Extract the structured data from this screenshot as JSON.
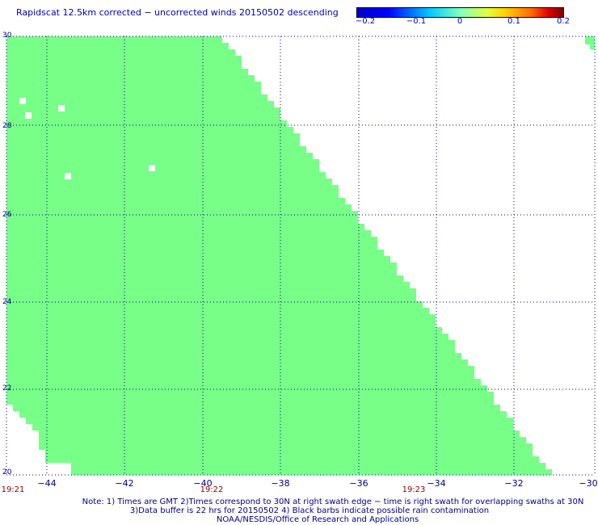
{
  "title": "Rapidscat 12.5km corrected − uncorrected winds 20150502 descending",
  "colorbar": {
    "ticks": [
      "−0.2",
      "−0.1",
      "0",
      "0.1",
      "0.2"
    ],
    "colors": [
      "#0000c8",
      "#00c8ff",
      "#80ffc0",
      "#ffd000",
      "#800000"
    ]
  },
  "map": {
    "lat_ticks": [
      "30",
      "28",
      "26",
      "24",
      "22",
      "20"
    ],
    "lon_ticks": [
      "−44",
      "−42",
      "−40",
      "−38",
      "−36",
      "−34",
      "−32",
      "−30"
    ],
    "time_ticks": [
      "19:21",
      "19:22",
      "19:23"
    ],
    "fill_color": "#77ff88",
    "grid_color": "#000080"
  },
  "notes": {
    "line1": "Note: 1) Times are GMT 2)Times correspond to 30N at right swath edge − time is right swath for overlapping swaths at 30N",
    "line2": "3)Data buffer is 22 hrs for 20150502 4) Black barbs indicate possible rain contamination",
    "line3": "NOAA/NESDIS/Office of Research and Applications"
  }
}
